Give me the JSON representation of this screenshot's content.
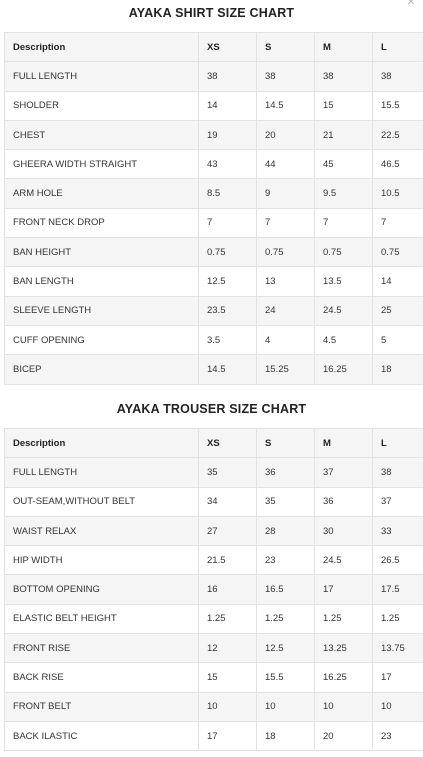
{
  "close_glyph": "×",
  "shirt": {
    "title": "AYAKA SHIRT SIZE CHART",
    "headers": [
      "Description",
      "XS",
      "S",
      "M",
      "L"
    ],
    "rows": [
      [
        "FULL LENGTH",
        "38",
        "38",
        "38",
        "38"
      ],
      [
        "SHOLDER",
        "14",
        "14.5",
        "15",
        "15.5"
      ],
      [
        "CHEST",
        "19",
        "20",
        "21",
        "22.5"
      ],
      [
        "GHEERA WIDTH STRAIGHT",
        "43",
        "44",
        "45",
        "46.5"
      ],
      [
        "ARM HOLE",
        "8.5",
        "9",
        "9.5",
        "10.5"
      ],
      [
        "FRONT NECK DROP",
        "7",
        "7",
        "7",
        "7"
      ],
      [
        "BAN HEIGHT",
        "0.75",
        "0.75",
        "0.75",
        "0.75"
      ],
      [
        "BAN LENGTH",
        "12.5",
        "13",
        "13.5",
        "14"
      ],
      [
        "SLEEVE LENGTH",
        "23.5",
        "24",
        "24.5",
        "25"
      ],
      [
        "CUFF OPENING",
        "3.5",
        "4",
        "4.5",
        "5"
      ],
      [
        "BICEP",
        "14.5",
        "15.25",
        "16.25",
        "18"
      ]
    ]
  },
  "trouser": {
    "title": "AYAKA TROUSER SIZE CHART",
    "headers": [
      "Description",
      "XS",
      "S",
      "M",
      "L"
    ],
    "rows": [
      [
        "FULL LENGTH",
        "35",
        "36",
        "37",
        "38"
      ],
      [
        "OUT-SEAM,WITHOUT BELT",
        "34",
        "35",
        "36",
        "37"
      ],
      [
        "WAIST RELAX",
        "27",
        "28",
        "30",
        "33"
      ],
      [
        "HIP WIDTH",
        "21.5",
        "23",
        "24.5",
        "26.5"
      ],
      [
        "BOTTOM OPENING",
        "16",
        "16.5",
        "17",
        "17.5"
      ],
      [
        "ELASTIC BELT HEIGHT",
        "1.25",
        "1.25",
        "1.25",
        "1.25"
      ],
      [
        "FRONT RISE",
        "12",
        "12.5",
        "13.25",
        "13.75"
      ],
      [
        "BACK RISE",
        "15",
        "15.5",
        "16.25",
        "17"
      ],
      [
        "FRONT BELT",
        "10",
        "10",
        "10",
        "10"
      ],
      [
        "BACK ILASTIC",
        "17",
        "18",
        "20",
        "23"
      ]
    ]
  }
}
